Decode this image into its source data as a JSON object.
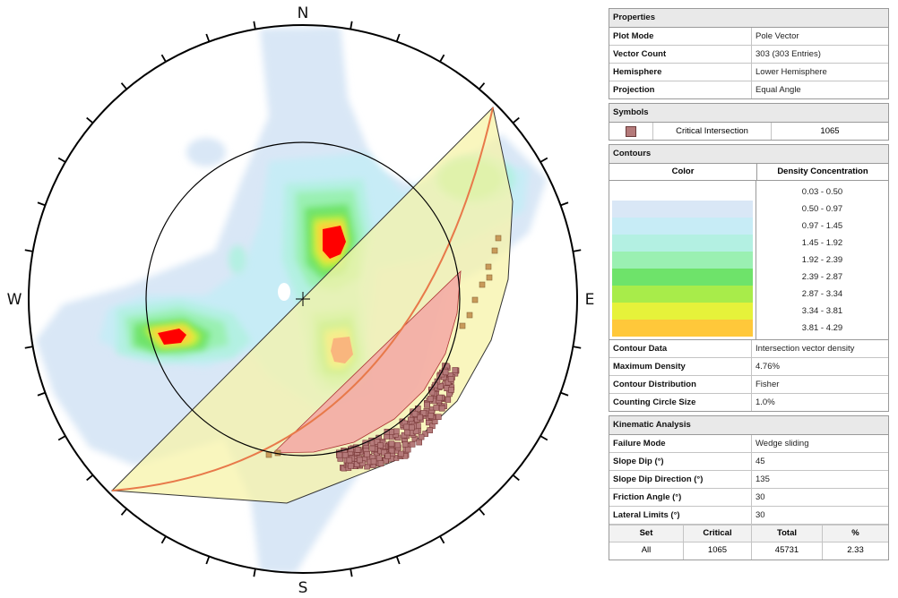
{
  "compass": {
    "north": "N",
    "south": "S",
    "east": "E",
    "west": "W"
  },
  "colors": {
    "critical_zone": "#f4a3a3",
    "wedge_zone": "#f7f3a8",
    "friction_circle": "#000000",
    "slope_plane": "#e8794a",
    "symbol_fill": "#b47a7a"
  },
  "contour_colors": [
    "#ffffff",
    "#d9e7f6",
    "#c7ecf6",
    "#b3f0e2",
    "#9af0b2",
    "#6ee36a",
    "#a8ec4a",
    "#e6f23a",
    "#ffc83a"
  ],
  "properties": {
    "title": "Properties",
    "rows": [
      {
        "key": "Plot Mode",
        "value": "Pole Vector"
      },
      {
        "key": "Vector Count",
        "value": "303 (303 Entries)"
      },
      {
        "key": "Hemisphere",
        "value": "Lower Hemisphere"
      },
      {
        "key": "Projection",
        "value": "Equal Angle"
      }
    ]
  },
  "symbols": {
    "title": "Symbols",
    "label": "Critical Intersection",
    "count": "1065"
  },
  "contours": {
    "title": "Contours",
    "color_header": "Color",
    "density_header": "Density Concentration",
    "ranges": [
      "0.03 - 0.50",
      "0.50 - 0.97",
      "0.97 - 1.45",
      "1.45 - 1.92",
      "1.92 - 2.39",
      "2.39 - 2.87",
      "2.87 - 3.34",
      "3.34 - 3.81",
      "3.81 - 4.29"
    ],
    "rows": [
      {
        "key": "Contour Data",
        "value": "Intersection vector density"
      },
      {
        "key": "Maximum Density",
        "value": "4.76%"
      },
      {
        "key": "Contour Distribution",
        "value": "Fisher"
      },
      {
        "key": "Counting Circle Size",
        "value": "1.0%"
      }
    ]
  },
  "kinematic": {
    "title": "Kinematic Analysis",
    "rows": [
      {
        "key": "Failure Mode",
        "value": "Wedge sliding"
      },
      {
        "key": "Slope Dip (°)",
        "value": "45"
      },
      {
        "key": "Slope Dip Direction (°)",
        "value": "135"
      },
      {
        "key": "Friction Angle (°)",
        "value": "30"
      },
      {
        "key": "Lateral Limits (°)",
        "value": "30"
      }
    ],
    "summary_header": [
      "Set",
      "Critical",
      "Total",
      "%"
    ],
    "summary_row": [
      "All",
      "1065",
      "45731",
      "2.33"
    ]
  }
}
